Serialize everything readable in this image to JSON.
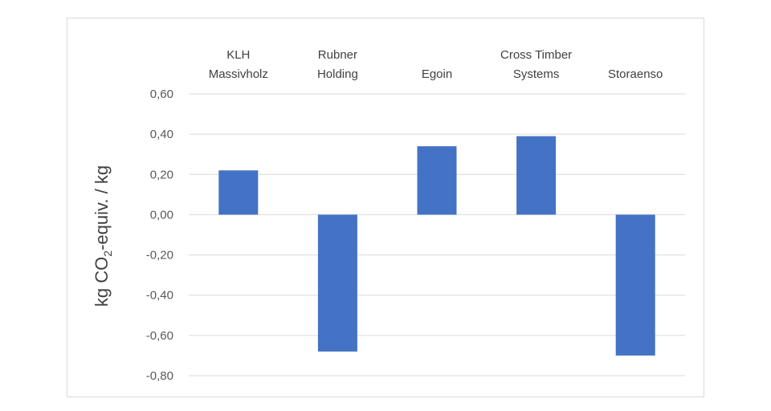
{
  "chart_data": {
    "type": "bar",
    "categories": [
      [
        "KLH",
        "Massivholz"
      ],
      [
        "Rubner",
        "Holding"
      ],
      [
        "Egoin"
      ],
      [
        "Cross Timber",
        "Systems"
      ],
      [
        "Storaenso"
      ]
    ],
    "values": [
      0.22,
      -0.68,
      0.34,
      0.39,
      -0.7
    ],
    "ylabel": {
      "prefix": "kg CO",
      "subscript": "2",
      "suffix": "-equiv. / kg"
    },
    "ylim": [
      -0.8,
      0.6
    ],
    "yticks": [
      0.6,
      0.4,
      0.2,
      0.0,
      -0.2,
      -0.4,
      -0.6,
      -0.8
    ],
    "ytick_labels": [
      "0,60",
      "0,40",
      "0,20",
      "0,00",
      "-0,20",
      "-0,40",
      "-0,60",
      "-0,80"
    ],
    "bar_color": "#4472c4",
    "gridline_color": "#d9d9d9",
    "grid": true,
    "category_labels_position": "top",
    "legend": "none"
  }
}
